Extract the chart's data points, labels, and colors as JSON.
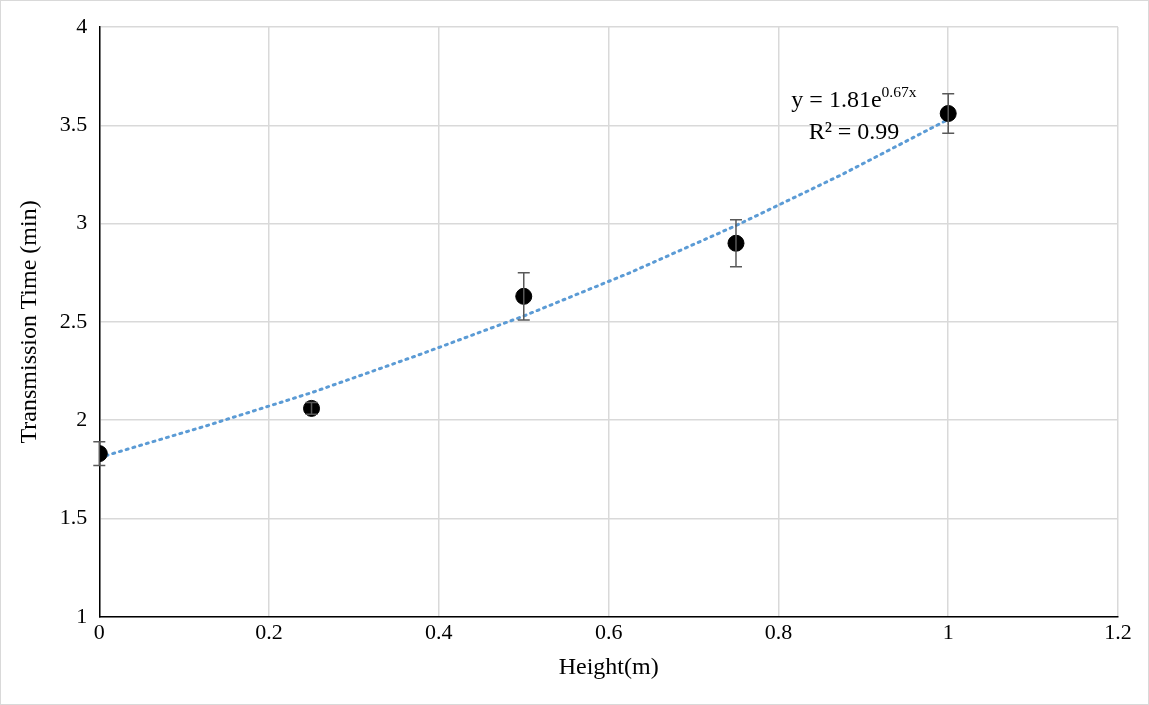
{
  "chart_data": {
    "type": "scatter",
    "xlabel": "Height(m)",
    "ylabel": "Transmission Time (min)",
    "x": [
      0,
      0.25,
      0.5,
      0.75,
      1
    ],
    "series": [
      {
        "color": "#000000",
        "values": [
          1.83,
          2.06,
          2.63,
          2.9,
          3.56
        ],
        "errors": [
          0.06,
          0.03,
          0.12,
          0.12,
          0.1
        ],
        "marker": "circle"
      },
      {
        "type": "line",
        "color": "#5b9bd5",
        "x": [
          0,
          0.125,
          0.25,
          0.375,
          0.5,
          0.625,
          0.75,
          0.875,
          1
        ],
        "values": [
          1.81,
          1.97,
          2.14,
          2.33,
          2.53,
          2.75,
          2.99,
          3.25,
          3.53
        ],
        "line_style": "dotted",
        "marker": "none"
      }
    ],
    "annotations": [
      "y = 1.81e$^{0.67x}$",
      "R² = 0.99"
    ],
    "xlim": [
      0,
      1.2
    ],
    "xticks": [
      0,
      0.2,
      0.4,
      0.6,
      0.8,
      1,
      1.2
    ],
    "ylim": [
      1,
      4
    ],
    "yticks": [
      1,
      1.5,
      2,
      2.5,
      3,
      3.5,
      4
    ],
    "grid": true,
    "legend": false
  }
}
